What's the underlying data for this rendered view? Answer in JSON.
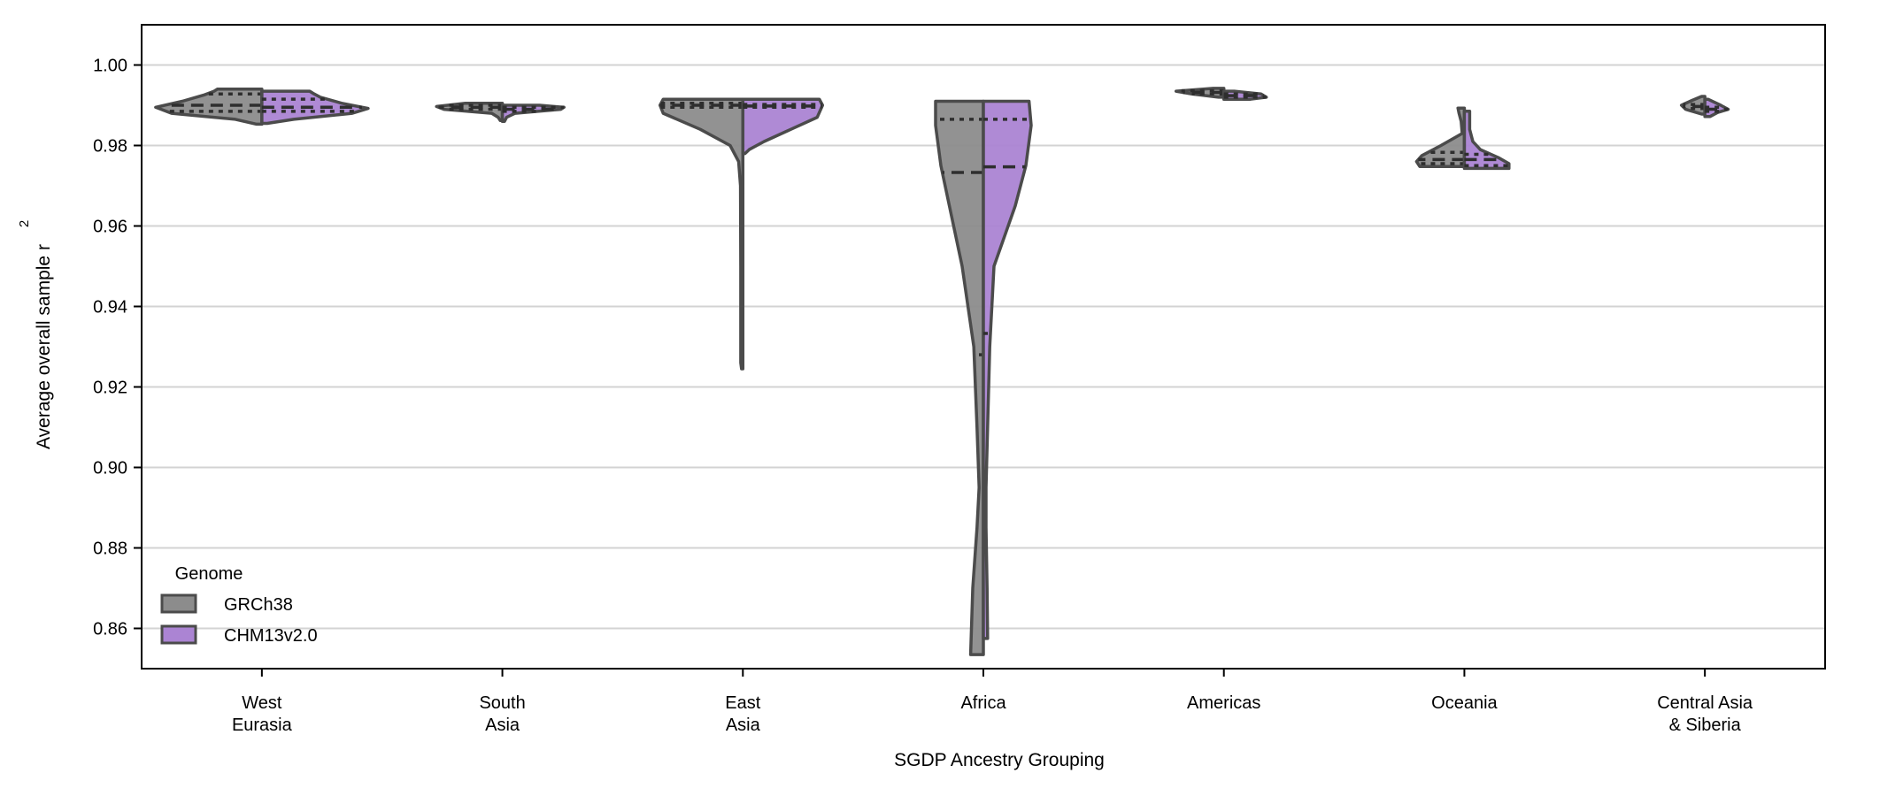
{
  "chart_data": {
    "type": "violin",
    "xlabel": "SGDP Ancestry Grouping",
    "ylabel_main": "Average overall sample r",
    "ylabel_sup": "2",
    "ylim": [
      0.85,
      1.01
    ],
    "yticks": [
      "0.86",
      "0.88",
      "0.90",
      "0.92",
      "0.94",
      "0.96",
      "0.98",
      "1.00"
    ],
    "grid": "horizontal",
    "split": true,
    "legend": {
      "title": "Genome",
      "placement": "lower-left",
      "entries": [
        {
          "label": "GRCh38",
          "color": "#8c8c8c"
        },
        {
          "label": "CHM13v2.0",
          "color": "#ab84d3"
        }
      ]
    },
    "categories": [
      {
        "line1": "West",
        "line2": "Eurasia"
      },
      {
        "line1": "South",
        "line2": "Asia"
      },
      {
        "line1": "East",
        "line2": "Asia"
      },
      {
        "line1": "Africa",
        "line2": ""
      },
      {
        "line1": "Americas",
        "line2": ""
      },
      {
        "line1": "Oceania",
        "line2": ""
      },
      {
        "line1": "Central Asia",
        "line2": "& Siberia"
      }
    ],
    "series": [
      {
        "name": "GRCh38",
        "color": "#8c8c8c",
        "groups": [
          {
            "min": 0.9853,
            "max": 0.994,
            "q1": 0.9885,
            "median": 0.99,
            "q3": 0.9928,
            "profile": [
              [
                0.9853,
                0.05
              ],
              [
                0.9865,
                0.25
              ],
              [
                0.988,
                0.85
              ],
              [
                0.9895,
                1.0
              ],
              [
                0.991,
                0.75
              ],
              [
                0.9925,
                0.55
              ],
              [
                0.9935,
                0.45
              ],
              [
                0.994,
                0.42
              ]
            ]
          },
          {
            "min": 0.9862,
            "max": 0.9905,
            "q1": 0.989,
            "median": 0.9895,
            "q3": 0.99,
            "profile": [
              [
                0.9862,
                0.02
              ],
              [
                0.987,
                0.04
              ],
              [
                0.988,
                0.1
              ],
              [
                0.989,
                0.55
              ],
              [
                0.9897,
                0.62
              ],
              [
                0.9905,
                0.35
              ]
            ]
          },
          {
            "min": 0.9245,
            "max": 0.9915,
            "q1": 0.9895,
            "median": 0.99,
            "q3": 0.9905,
            "profile": [
              [
                0.9245,
                0.012
              ],
              [
                0.926,
                0.02
              ],
              [
                0.93,
                0.02
              ],
              [
                0.95,
                0.02
              ],
              [
                0.97,
                0.022
              ],
              [
                0.976,
                0.04
              ],
              [
                0.98,
                0.12
              ],
              [
                0.984,
                0.4
              ],
              [
                0.988,
                0.75
              ],
              [
                0.99,
                0.78
              ],
              [
                0.9915,
                0.75
              ]
            ]
          },
          {
            "min": 0.8535,
            "max": 0.991,
            "q1": 0.928,
            "median": 0.9733,
            "q3": 0.9865,
            "profile": [
              [
                0.8535,
                0.12
              ],
              [
                0.87,
                0.1
              ],
              [
                0.885,
                0.06
              ],
              [
                0.895,
                0.04
              ],
              [
                0.91,
                0.06
              ],
              [
                0.93,
                0.09
              ],
              [
                0.95,
                0.2
              ],
              [
                0.965,
                0.32
              ],
              [
                0.975,
                0.4
              ],
              [
                0.985,
                0.45
              ],
              [
                0.991,
                0.45
              ]
            ]
          },
          {
            "min": 0.992,
            "max": 0.9942,
            "q1": 0.9928,
            "median": 0.9932,
            "q3": 0.9936,
            "profile": [
              [
                0.992,
                0.05
              ],
              [
                0.9928,
                0.3
              ],
              [
                0.9935,
                0.45
              ],
              [
                0.9942,
                0.1
              ]
            ]
          },
          {
            "min": 0.9748,
            "max": 0.9893,
            "q1": 0.9755,
            "median": 0.9765,
            "q3": 0.9783,
            "profile": [
              [
                0.9748,
                0.42
              ],
              [
                0.976,
                0.45
              ],
              [
                0.9775,
                0.4
              ],
              [
                0.98,
                0.22
              ],
              [
                0.983,
                0.02
              ],
              [
                0.986,
                0.03
              ],
              [
                0.988,
                0.05
              ],
              [
                0.9893,
                0.06
              ]
            ]
          },
          {
            "min": 0.9878,
            "max": 0.9922,
            "q1": 0.9892,
            "median": 0.9897,
            "q3": 0.9902,
            "profile": [
              [
                0.9878,
                0.03
              ],
              [
                0.989,
                0.18
              ],
              [
                0.99,
                0.22
              ],
              [
                0.9912,
                0.12
              ],
              [
                0.9922,
                0.03
              ]
            ]
          }
        ]
      },
      {
        "name": "CHM13v2.0",
        "color": "#ab84d3",
        "groups": [
          {
            "min": 0.9855,
            "max": 0.9935,
            "q1": 0.9885,
            "median": 0.9895,
            "q3": 0.9915,
            "profile": [
              [
                0.9855,
                0.05
              ],
              [
                0.9865,
                0.3
              ],
              [
                0.988,
                0.85
              ],
              [
                0.9892,
                1.0
              ],
              [
                0.9905,
                0.75
              ],
              [
                0.992,
                0.55
              ],
              [
                0.993,
                0.48
              ],
              [
                0.9935,
                0.45
              ]
            ]
          },
          {
            "min": 0.986,
            "max": 0.99,
            "q1": 0.9885,
            "median": 0.989,
            "q3": 0.9895,
            "profile": [
              [
                0.986,
                0.02
              ],
              [
                0.987,
                0.04
              ],
              [
                0.988,
                0.12
              ],
              [
                0.989,
                0.55
              ],
              [
                0.9895,
                0.58
              ],
              [
                0.99,
                0.35
              ]
            ]
          },
          {
            "min": 0.978,
            "max": 0.9915,
            "q1": 0.9895,
            "median": 0.9898,
            "q3": 0.9902,
            "profile": [
              [
                0.978,
                0.02
              ],
              [
                0.979,
                0.06
              ],
              [
                0.981,
                0.2
              ],
              [
                0.984,
                0.45
              ],
              [
                0.987,
                0.7
              ],
              [
                0.99,
                0.75
              ],
              [
                0.9915,
                0.72
              ]
            ]
          },
          {
            "min": 0.8575,
            "max": 0.991,
            "q1": 0.9333,
            "median": 0.9747,
            "q3": 0.9865,
            "profile": [
              [
                0.8575,
                0.04
              ],
              [
                0.87,
                0.035
              ],
              [
                0.885,
                0.025
              ],
              [
                0.895,
                0.025
              ],
              [
                0.91,
                0.04
              ],
              [
                0.93,
                0.06
              ],
              [
                0.95,
                0.1
              ],
              [
                0.965,
                0.3
              ],
              [
                0.975,
                0.4
              ],
              [
                0.985,
                0.45
              ],
              [
                0.991,
                0.43
              ]
            ]
          },
          {
            "min": 0.9915,
            "max": 0.9935,
            "q1": 0.992,
            "median": 0.9924,
            "q3": 0.9928,
            "profile": [
              [
                0.9915,
                0.25
              ],
              [
                0.992,
                0.4
              ],
              [
                0.9928,
                0.35
              ],
              [
                0.9935,
                0.1
              ]
            ]
          },
          {
            "min": 0.9743,
            "max": 0.9885,
            "q1": 0.975,
            "median": 0.9765,
            "q3": 0.9778,
            "profile": [
              [
                0.9743,
                0.42
              ],
              [
                0.9755,
                0.42
              ],
              [
                0.977,
                0.32
              ],
              [
                0.979,
                0.15
              ],
              [
                0.981,
                0.08
              ],
              [
                0.984,
                0.05
              ],
              [
                0.987,
                0.05
              ],
              [
                0.9885,
                0.05
              ]
            ]
          },
          {
            "min": 0.9872,
            "max": 0.9915,
            "q1": 0.9885,
            "median": 0.989,
            "q3": 0.9895,
            "profile": [
              [
                0.9872,
                0.05
              ],
              [
                0.9882,
                0.12
              ],
              [
                0.989,
                0.22
              ],
              [
                0.99,
                0.15
              ],
              [
                0.9915,
                0.03
              ]
            ]
          }
        ]
      }
    ]
  }
}
